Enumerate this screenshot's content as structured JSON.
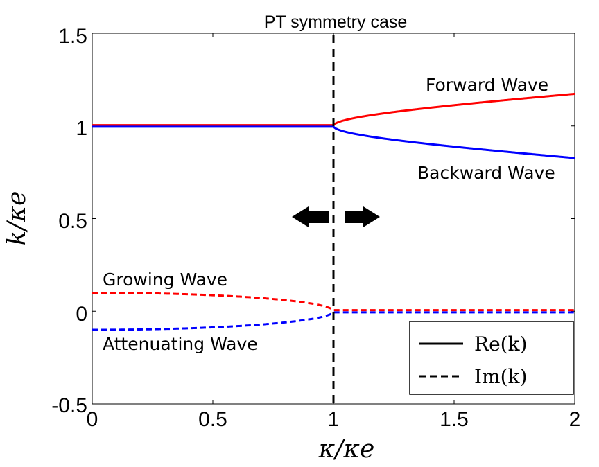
{
  "chart_data": {
    "type": "line",
    "title": "PT symmetry case",
    "xlabel": "κ/κe",
    "ylabel": "k/κe",
    "xlim": [
      0,
      2
    ],
    "ylim": [
      -0.5,
      1.5
    ],
    "x_ticks": [
      "0",
      "0.5",
      "1",
      "1.5",
      "2"
    ],
    "y_ticks": [
      "1.5",
      "1",
      "0.5",
      "0",
      "-0.5"
    ],
    "x_tick_values": [
      0,
      0.5,
      1,
      1.5,
      2
    ],
    "y_tick_values": [
      1.5,
      1,
      0.5,
      0,
      -0.5
    ],
    "threshold_x": 1,
    "delta": 0.1,
    "series": [
      {
        "name": "Re(k) forward",
        "component": "Re",
        "sign": 1,
        "color": "#ff0000",
        "style": "solid"
      },
      {
        "name": "Re(k) backward",
        "component": "Re",
        "sign": -1,
        "color": "#0000ff",
        "style": "solid"
      },
      {
        "name": "Im(k) growing",
        "component": "Im",
        "sign": 1,
        "color": "#ff0000",
        "style": "dashed"
      },
      {
        "name": "Im(k) attenuating",
        "component": "Im",
        "sign": -1,
        "color": "#0000ff",
        "style": "dashed"
      }
    ],
    "annotations": {
      "forward": "Forward Wave",
      "backward": "Backward Wave",
      "growing": "Growing Wave",
      "attenuating": "Attenuating Wave"
    },
    "legend": {
      "position": "bottom-right",
      "entries": [
        {
          "label": "Re(k)",
          "style": "solid",
          "color": "#000000"
        },
        {
          "label": "Im(k)",
          "style": "dashed",
          "color": "#000000"
        }
      ]
    }
  }
}
